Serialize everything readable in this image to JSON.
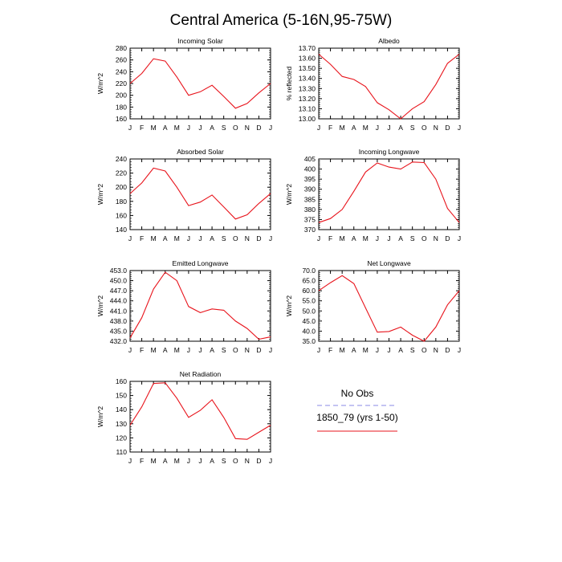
{
  "title": "Central America (5-16N,95-75W)",
  "months": [
    "J",
    "F",
    "M",
    "A",
    "M",
    "J",
    "J",
    "A",
    "S",
    "O",
    "N",
    "D",
    "J"
  ],
  "colors": {
    "model": "#e8141c",
    "obs": "#8a8ae6",
    "axis": "#000000"
  },
  "legend": {
    "obs_label": "No Obs",
    "model_label": "1850_79 (yrs 1-50)"
  },
  "chart_data": [
    {
      "type": "line",
      "title": "Incoming Solar",
      "ylabel": "W/m^2",
      "ylim": [
        160,
        280
      ],
      "yticks": [
        "160",
        "180",
        "200",
        "220",
        "240",
        "260",
        "280"
      ],
      "ytick_values": [
        160,
        180,
        200,
        220,
        240,
        260,
        280
      ],
      "categories": [
        "J",
        "F",
        "M",
        "A",
        "M",
        "J",
        "J",
        "A",
        "S",
        "O",
        "N",
        "D",
        "J"
      ],
      "series": [
        {
          "name": "1850_79 (yrs 1-50)",
          "values": [
            220,
            237,
            262,
            258,
            231,
            200,
            206,
            217,
            198,
            178,
            186,
            204,
            220
          ]
        }
      ]
    },
    {
      "type": "line",
      "title": "Albedo",
      "ylabel": "% reflected",
      "ylim": [
        13.0,
        13.7
      ],
      "yticks": [
        "13.00",
        "13.10",
        "13.20",
        "13.30",
        "13.40",
        "13.50",
        "13.60",
        "13.70"
      ],
      "ytick_values": [
        13.0,
        13.1,
        13.2,
        13.3,
        13.4,
        13.5,
        13.6,
        13.7
      ],
      "categories": [
        "J",
        "F",
        "M",
        "A",
        "M",
        "J",
        "J",
        "A",
        "S",
        "O",
        "N",
        "D",
        "J"
      ],
      "series": [
        {
          "name": "1850_79 (yrs 1-50)",
          "values": [
            13.64,
            13.54,
            13.42,
            13.39,
            13.32,
            13.16,
            13.09,
            13.0,
            13.1,
            13.17,
            13.34,
            13.55,
            13.64
          ]
        }
      ]
    },
    {
      "type": "line",
      "title": "Absorbed Solar",
      "ylabel": "W/m^2",
      "ylim": [
        140,
        240
      ],
      "yticks": [
        "140",
        "160",
        "180",
        "200",
        "220",
        "240"
      ],
      "ytick_values": [
        140,
        160,
        180,
        200,
        220,
        240
      ],
      "categories": [
        "J",
        "F",
        "M",
        "A",
        "M",
        "J",
        "J",
        "A",
        "S",
        "O",
        "N",
        "D",
        "J"
      ],
      "series": [
        {
          "name": "1850_79 (yrs 1-50)",
          "values": [
            191,
            206,
            227,
            223,
            200,
            174,
            179,
            189,
            172,
            155,
            161,
            177,
            191
          ]
        }
      ]
    },
    {
      "type": "line",
      "title": "Incoming Longwave",
      "ylabel": "W/m^2",
      "ylim": [
        370,
        405
      ],
      "yticks": [
        "370",
        "375",
        "380",
        "385",
        "390",
        "395",
        "400",
        "405"
      ],
      "ytick_values": [
        370,
        375,
        380,
        385,
        390,
        395,
        400,
        405
      ],
      "categories": [
        "J",
        "F",
        "M",
        "A",
        "M",
        "J",
        "J",
        "A",
        "S",
        "O",
        "N",
        "D",
        "J"
      ],
      "series": [
        {
          "name": "1850_79 (yrs 1-50)",
          "values": [
            373.5,
            375.5,
            380,
            389,
            398.5,
            403,
            401,
            400,
            403.5,
            403.2,
            395,
            380.5,
            373.5
          ]
        }
      ]
    },
    {
      "type": "line",
      "title": "Emitted Longwave",
      "ylabel": "W/m^2",
      "ylim": [
        432,
        453
      ],
      "yticks": [
        "432.0",
        "435.0",
        "438.0",
        "441.0",
        "444.0",
        "447.0",
        "450.0",
        "453.0"
      ],
      "ytick_values": [
        432,
        435,
        438,
        441,
        444,
        447,
        450,
        453
      ],
      "categories": [
        "J",
        "F",
        "M",
        "A",
        "M",
        "J",
        "J",
        "A",
        "S",
        "O",
        "N",
        "D",
        "J"
      ],
      "series": [
        {
          "name": "1850_79 (yrs 1-50)",
          "values": [
            433,
            439,
            447.5,
            452.5,
            450,
            442.3,
            440.5,
            441.6,
            441.2,
            438,
            435.8,
            432.6,
            433.3
          ]
        }
      ]
    },
    {
      "type": "line",
      "title": "Net Longwave",
      "ylabel": "W/m^2",
      "ylim": [
        35,
        70
      ],
      "yticks": [
        "35.0",
        "40.0",
        "45.0",
        "50.0",
        "55.0",
        "60.0",
        "65.0",
        "70.0"
      ],
      "ytick_values": [
        35,
        40,
        45,
        50,
        55,
        60,
        65,
        70
      ],
      "categories": [
        "J",
        "F",
        "M",
        "A",
        "M",
        "J",
        "J",
        "A",
        "S",
        "O",
        "N",
        "D",
        "J"
      ],
      "series": [
        {
          "name": "1850_79 (yrs 1-50)",
          "values": [
            60,
            64,
            67.5,
            63.5,
            51.5,
            39.5,
            39.8,
            42,
            38,
            35,
            42,
            53,
            60
          ]
        }
      ]
    },
    {
      "type": "line",
      "title": "Net Radiation",
      "ylabel": "W/m^2",
      "ylim": [
        110,
        160
      ],
      "yticks": [
        "110",
        "120",
        "130",
        "140",
        "150",
        "160"
      ],
      "ytick_values": [
        110,
        120,
        130,
        140,
        150,
        160
      ],
      "categories": [
        "J",
        "F",
        "M",
        "A",
        "M",
        "J",
        "J",
        "A",
        "S",
        "O",
        "N",
        "D",
        "J"
      ],
      "series": [
        {
          "name": "1850_79 (yrs 1-50)",
          "values": [
            129,
            142,
            158.5,
            159,
            148,
            134.5,
            139.5,
            147,
            134.5,
            119.5,
            119,
            124,
            129
          ]
        }
      ]
    }
  ]
}
